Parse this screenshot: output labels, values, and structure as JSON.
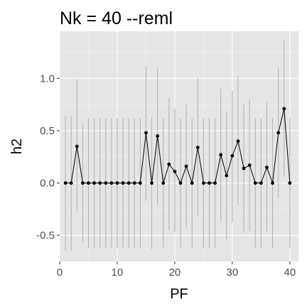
{
  "chart_data": {
    "type": "scatter",
    "title": "Nk = 40 --reml",
    "xlabel": "PF",
    "ylabel": "h2",
    "xlim": [
      0,
      41.5
    ],
    "ylim": [
      -0.75,
      1.45
    ],
    "x_ticks": [
      0,
      10,
      20,
      30,
      40
    ],
    "y_ticks": [
      -0.5,
      0.0,
      0.5,
      1.0
    ],
    "x_tick_labels": [
      "0",
      "10",
      "20",
      "30",
      "40"
    ],
    "y_tick_labels": [
      "-0.5",
      "0.0",
      "0.5",
      "1.0"
    ],
    "grid": true,
    "colors": {
      "panel": "#e5e5e5",
      "points": "#000000",
      "error_bars": "#b0b0b0"
    },
    "series": [
      {
        "x": [
          1,
          2,
          3,
          4,
          5,
          6,
          7,
          8,
          9,
          10,
          11,
          12,
          13,
          14,
          15,
          16,
          17,
          18,
          19,
          20,
          21,
          22,
          23,
          24,
          25,
          26,
          27,
          28,
          29,
          30,
          31,
          32,
          33,
          34,
          35,
          36,
          37,
          38,
          39,
          40
        ],
        "y": [
          0,
          0,
          0.35,
          0,
          0,
          0,
          0,
          0,
          0,
          0,
          0,
          0,
          0,
          0,
          0.48,
          0,
          0.45,
          0,
          0.18,
          0.11,
          0,
          0.16,
          0,
          0.34,
          0,
          0,
          0,
          0.27,
          0.07,
          0.26,
          0.4,
          0.14,
          0.17,
          0,
          0,
          0.15,
          0,
          0.48,
          0.71,
          0
        ],
        "lower": [
          -0.65,
          -0.65,
          -0.27,
          -0.57,
          -0.62,
          -0.62,
          -0.62,
          -0.62,
          -0.62,
          -0.62,
          -0.62,
          -0.62,
          -0.62,
          -0.62,
          -0.17,
          -0.63,
          -0.21,
          -0.62,
          -0.45,
          -0.47,
          -0.62,
          -0.43,
          -0.62,
          -0.32,
          -0.62,
          -0.62,
          -0.62,
          -0.36,
          -0.54,
          -0.38,
          -0.21,
          -0.47,
          -0.46,
          -0.62,
          -0.62,
          -0.46,
          -0.62,
          -0.14,
          0.06,
          -0.62
        ],
        "upper": [
          0.64,
          0.64,
          0.99,
          0.57,
          0.62,
          0.62,
          0.62,
          0.62,
          0.62,
          0.62,
          0.62,
          0.62,
          0.62,
          0.62,
          1.12,
          0.63,
          1.1,
          0.62,
          0.81,
          0.71,
          0.62,
          0.76,
          0.62,
          1.0,
          0.62,
          0.62,
          0.62,
          0.9,
          0.68,
          0.88,
          1.03,
          0.76,
          0.8,
          0.62,
          0.62,
          0.77,
          0.62,
          1.1,
          1.37,
          0.62
        ]
      }
    ]
  }
}
